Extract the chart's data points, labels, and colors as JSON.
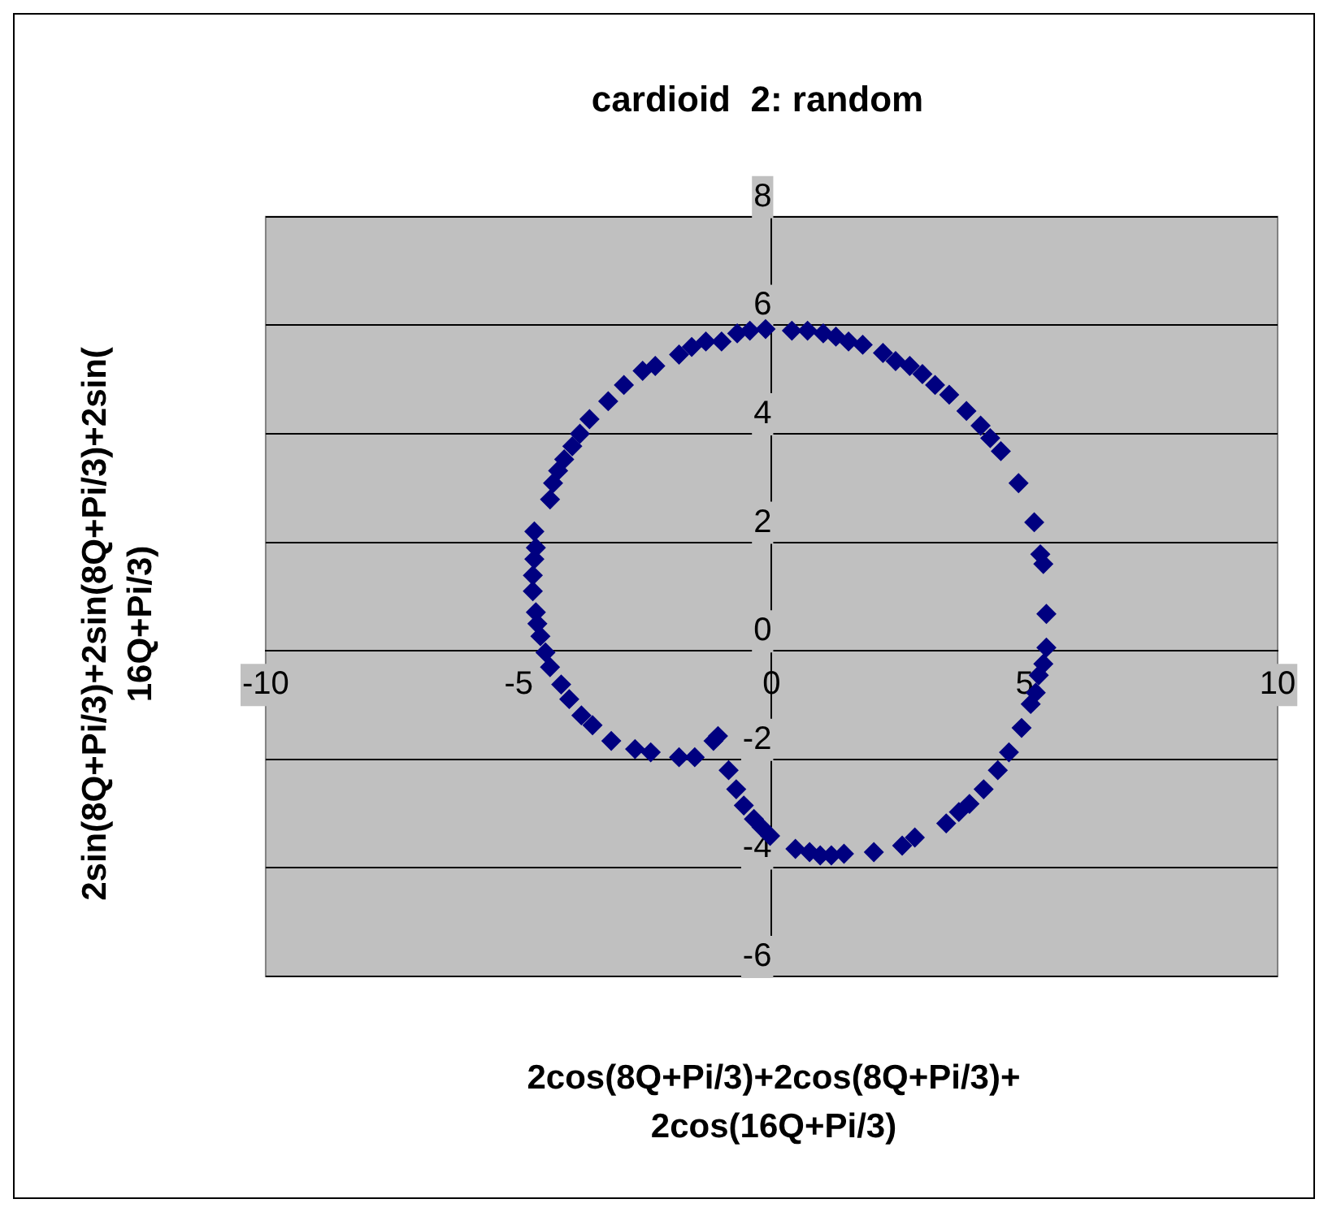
{
  "chart_data": {
    "type": "scatter",
    "title": "cardioid  2: random",
    "xlabel": "2cos(8Q+Pi/3)+2cos(8Q+Pi/3)+ 2cos(16Q+Pi/3)",
    "ylabel": "2sin(8Q+Pi/3)+2sin(8Q+Pi/3)+2sin( 16Q+Pi/3)",
    "xlim": [
      -10,
      10
    ],
    "ylim": [
      -6,
      8
    ],
    "xticks": [
      -10,
      -5,
      0,
      5,
      10
    ],
    "yticks": [
      -6,
      -4,
      -2,
      0,
      2,
      4,
      6,
      8
    ],
    "grid": "y",
    "legend": false,
    "marker": "diamond",
    "series": [
      {
        "color": "#000080",
        "x": [
          -4.69,
          -4.38,
          -4.32,
          -4.22,
          -4.1,
          -3.94,
          -3.79,
          -3.6,
          -3.23,
          -2.92,
          -2.55,
          -2.3,
          -1.83,
          -1.58,
          -1.3,
          -0.99,
          -0.68,
          -0.43,
          -0.12,
          0.4,
          0.71,
          1.02,
          1.27,
          1.52,
          1.8,
          2.2,
          2.45,
          2.73,
          2.98,
          3.23,
          3.51,
          3.85,
          4.13,
          4.32,
          4.53,
          4.88,
          5.19,
          5.31,
          5.37,
          5.43,
          5.43,
          5.37,
          5.28,
          5.22,
          5.12,
          4.94,
          4.69,
          4.47,
          4.19,
          3.91,
          3.7,
          3.45,
          2.83,
          2.58,
          2.02,
          1.43,
          1.18,
          0.96,
          0.75,
          0.47,
          -0.03,
          -0.2,
          -0.35,
          -0.55,
          -0.7,
          -0.85,
          -1.06,
          -1.15,
          -1.52,
          -1.83,
          -2.39,
          -2.7,
          -3.17,
          -3.54,
          -3.76,
          -4.0,
          -4.16,
          -4.38,
          -4.47,
          -4.57,
          -4.63,
          -4.66,
          -4.72,
          -4.72,
          -4.69,
          -4.66
        ],
        "values": [
          2.2,
          2.79,
          3.09,
          3.32,
          3.53,
          3.77,
          4.0,
          4.27,
          4.6,
          4.9,
          5.16,
          5.25,
          5.46,
          5.6,
          5.7,
          5.7,
          5.85,
          5.9,
          5.93,
          5.9,
          5.9,
          5.85,
          5.79,
          5.7,
          5.64,
          5.49,
          5.34,
          5.25,
          5.1,
          4.9,
          4.72,
          4.42,
          4.15,
          3.92,
          3.68,
          3.09,
          2.37,
          1.78,
          1.6,
          0.68,
          0.06,
          -0.24,
          -0.45,
          -0.77,
          -0.98,
          -1.42,
          -1.87,
          -2.2,
          -2.55,
          -2.82,
          -2.97,
          -3.18,
          -3.44,
          -3.59,
          -3.71,
          -3.74,
          -3.77,
          -3.77,
          -3.71,
          -3.65,
          -3.41,
          -3.25,
          -3.1,
          -2.85,
          -2.55,
          -2.2,
          -1.57,
          -1.66,
          -1.96,
          -1.96,
          -1.87,
          -1.81,
          -1.66,
          -1.37,
          -1.19,
          -0.89,
          -0.62,
          -0.3,
          -0.03,
          0.27,
          0.5,
          0.71,
          1.1,
          1.39,
          1.69,
          1.9
        ]
      }
    ]
  }
}
